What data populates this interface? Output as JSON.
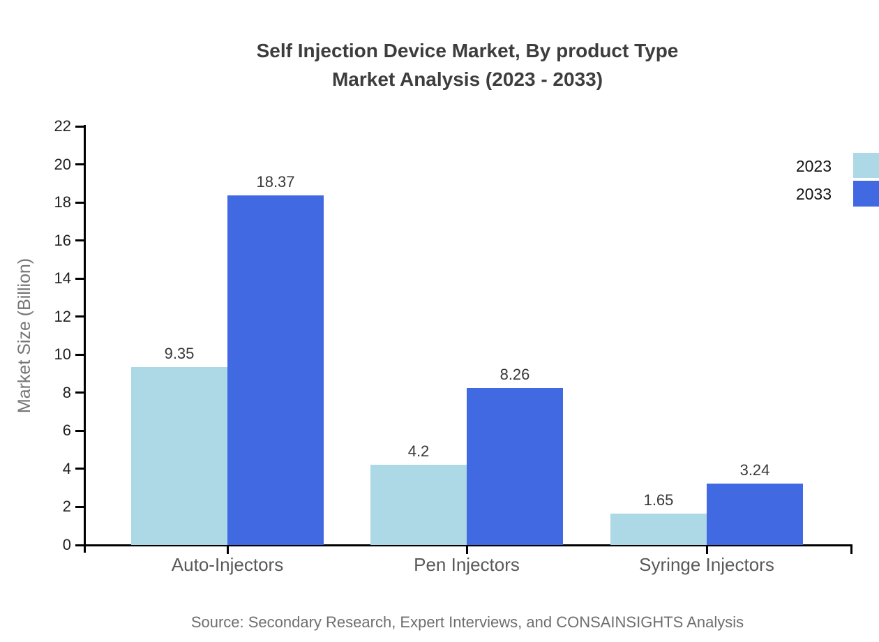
{
  "title": {
    "line1": "Self Injection Device Market, By product Type",
    "line2": "Market Analysis (2023 - 2033)"
  },
  "source": "Source: Secondary Research, Expert Interviews, and CONSAINSIGHTS Analysis",
  "chart_data": {
    "type": "bar",
    "title": "Self Injection Device Market, By product Type Market Analysis (2023 - 2033)",
    "categories": [
      "Auto-Injectors",
      "Pen Injectors",
      "Syringe Injectors"
    ],
    "series": [
      {
        "name": "2023",
        "color": "#ADD8E6",
        "values": [
          9.35,
          4.2,
          1.65
        ]
      },
      {
        "name": "2033",
        "color": "#4169E1",
        "values": [
          18.37,
          8.26,
          3.24
        ]
      }
    ],
    "xlabel": "",
    "ylabel": "Market Size (Billion)",
    "ylim": [
      0,
      22
    ],
    "ytick_step": 2,
    "grid": false,
    "legend_position": "top-right",
    "axis_color": "#000000",
    "value_label_color": "#383838"
  }
}
